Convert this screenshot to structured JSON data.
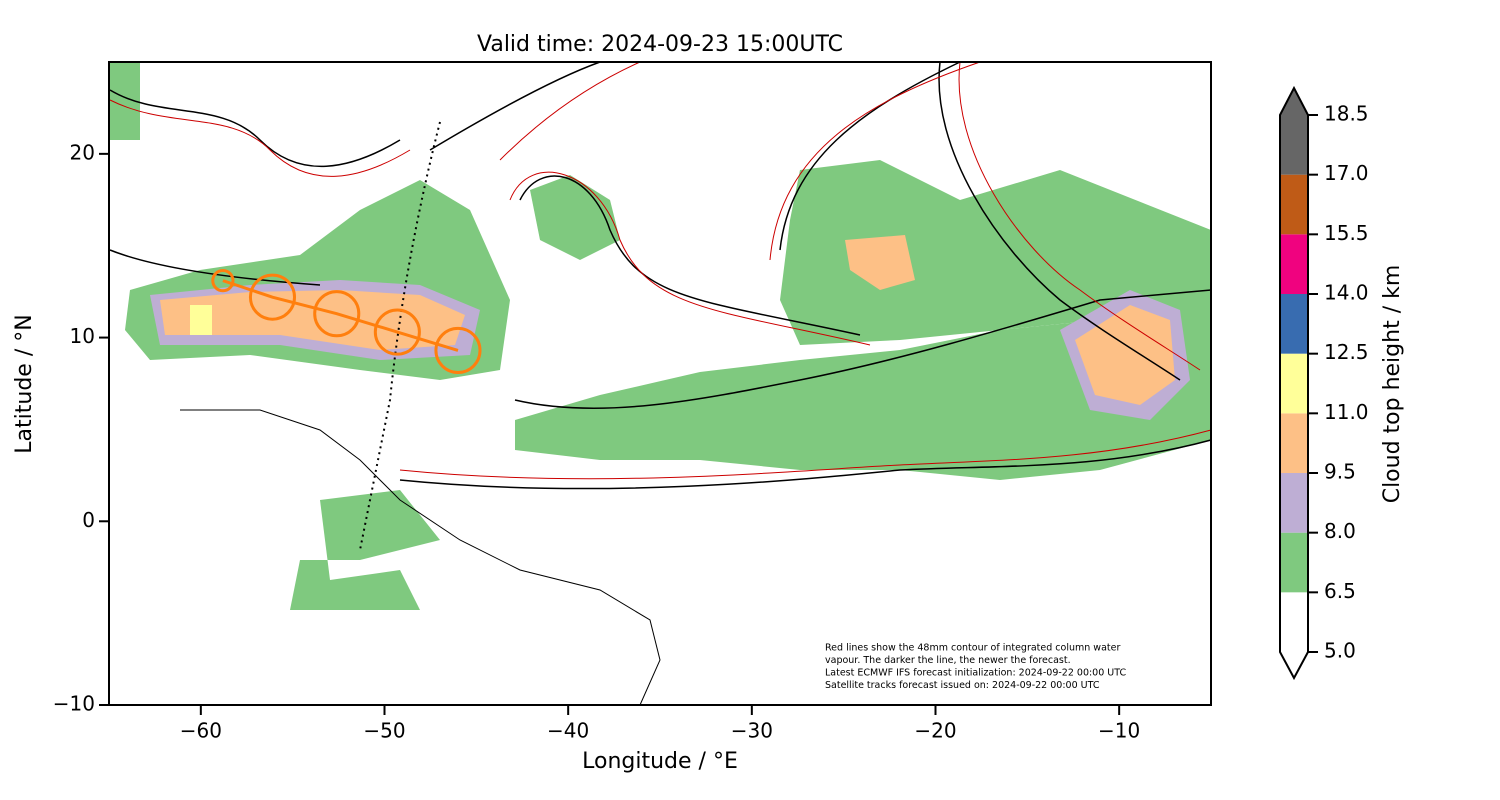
{
  "chart_data": {
    "type": "map",
    "title": "Valid time: 2024-09-23 15:00UTC",
    "x_label": "Longitude / °E",
    "y_label": "Latitude / °N",
    "xlim": [
      -65,
      -5
    ],
    "ylim": [
      -10,
      25
    ],
    "xticks": [
      {
        "value": -60,
        "label": "−60"
      },
      {
        "value": -50,
        "label": "−50"
      },
      {
        "value": -40,
        "label": "−40"
      },
      {
        "value": -30,
        "label": "−30"
      },
      {
        "value": -20,
        "label": "−20"
      },
      {
        "value": -10,
        "label": "−10"
      }
    ],
    "yticks": [
      {
        "value": -10,
        "label": "−10"
      },
      0,
      10,
      20
    ],
    "annotation": [
      "Red lines show the 48mm contour of integrated column water",
      "vapour. The darker the line, the newer the forecast.",
      "Latest ECMWF IFS forecast initialization: 2024-09-22 00:00 UTC",
      "Satellite tracks forecast issued on: 2024-09-22 00:00 UTC"
    ],
    "track": {
      "color": "#ff7f0e",
      "lon": [
        -58.8,
        -56.1,
        -52.6,
        -49.3,
        -46.0
      ],
      "lat": [
        13.1,
        12.2,
        11.3,
        10.3,
        9.3
      ],
      "radius": [
        0.55,
        1.2,
        1.2,
        1.2,
        1.2
      ]
    },
    "colorbar": {
      "label": "Cloud top height / km",
      "ticks": [
        {
          "value": 5,
          "label": "5.0"
        },
        6.5,
        {
          "value": 8,
          "label": "8.0"
        },
        9.5,
        {
          "value": 11,
          "label": "11.0"
        },
        12.5,
        {
          "value": 14,
          "label": "14.0"
        },
        15.5,
        {
          "value": 17,
          "label": "17.0"
        },
        18.5
      ],
      "colors": [
        "#ffffff",
        "#7fc97f",
        "#beaed4",
        "#fdc086",
        "#ffff99",
        "#386cb0",
        "#f0027f",
        "#bf5b17",
        "#666666"
      ],
      "under_color": "#ffffff",
      "over_color": "#666666"
    }
  }
}
